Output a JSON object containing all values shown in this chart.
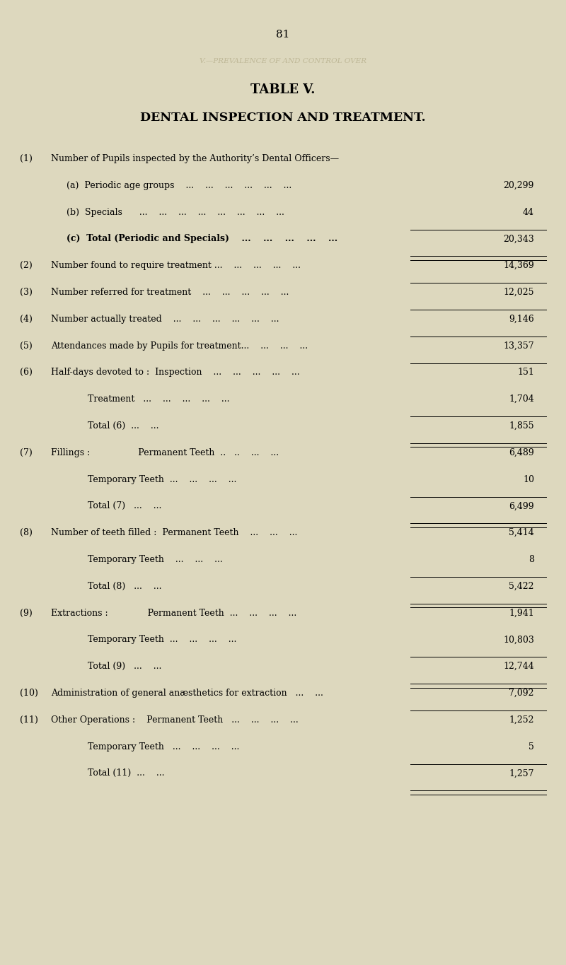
{
  "page_number": "81",
  "watermark_text": "V.—PREVALENCE OF AND CONTROL OVER",
  "table_title": "TABLE V.",
  "table_subtitle": "DENTAL INSPECTION AND TREATMENT.",
  "bg_color": "#ddd8be",
  "rows": [
    {
      "num": "(1)",
      "indent": 0,
      "label": "Number of Pupils inspected by the Authority’s Dental Officers—",
      "value": null,
      "separator_after": false,
      "bold": false,
      "double_line": false
    },
    {
      "num": "",
      "indent": 1,
      "label": "(a)  Periodic age groups    ...    ...    ...    ...    ...    ...",
      "value": "20,299",
      "separator_after": false,
      "bold": false,
      "double_line": false
    },
    {
      "num": "",
      "indent": 1,
      "label": "(b)  Specials      ...    ...    ...    ...    ...    ...    ...    ...",
      "value": "44",
      "separator_after": true,
      "bold": false,
      "double_line": false
    },
    {
      "num": "",
      "indent": 1,
      "label": "(c)  Total (Periodic and Specials)    ...    ...    ...    ...    ...",
      "value": "20,343",
      "separator_after": true,
      "bold": true,
      "double_line": true
    },
    {
      "num": "(2)",
      "indent": 0,
      "label": "Number found to require treatment ...    ...    ...    ...    ...",
      "value": "14,369",
      "separator_after": true,
      "bold": false,
      "double_line": false
    },
    {
      "num": "(3)",
      "indent": 0,
      "label": "Number referred for treatment    ...    ...    ...    ...    ...",
      "value": "12,025",
      "separator_after": true,
      "bold": false,
      "double_line": false
    },
    {
      "num": "(4)",
      "indent": 0,
      "label": "Number actually treated    ...    ...    ...    ...    ...    ...",
      "value": "9,146",
      "separator_after": true,
      "bold": false,
      "double_line": false
    },
    {
      "num": "(5)",
      "indent": 0,
      "label": "Attendances made by Pupils for treatment...    ...    ...    ...",
      "value": "13,357",
      "separator_after": true,
      "bold": false,
      "double_line": false
    },
    {
      "num": "(6)",
      "indent": 0,
      "label": "Half-days devoted to :  Inspection    ...    ...    ...    ...    ...",
      "value": "151",
      "separator_after": false,
      "bold": false,
      "double_line": false
    },
    {
      "num": "",
      "indent": 2,
      "label": "Treatment   ...    ...    ...    ...    ...",
      "value": "1,704",
      "separator_after": true,
      "bold": false,
      "double_line": false
    },
    {
      "num": "",
      "indent": 2,
      "label": "Total (6)  ...    ...",
      "value": "1,855",
      "separator_after": true,
      "bold": false,
      "double_line": true
    },
    {
      "num": "(7)",
      "indent": 0,
      "label": "Fillings :                 Permanent Teeth  ..   ..    ...    ...",
      "value": "6,489",
      "separator_after": false,
      "bold": false,
      "double_line": false
    },
    {
      "num": "",
      "indent": 2,
      "label": "Temporary Teeth  ...    ...    ...    ...",
      "value": "10",
      "separator_after": true,
      "bold": false,
      "double_line": false
    },
    {
      "num": "",
      "indent": 2,
      "label": "Total (7)   ...    ...",
      "value": "6,499",
      "separator_after": true,
      "bold": false,
      "double_line": true
    },
    {
      "num": "(8)",
      "indent": 0,
      "label": "Number of teeth filled :  Permanent Teeth    ...    ...    ...",
      "value": "5,414",
      "separator_after": false,
      "bold": false,
      "double_line": false
    },
    {
      "num": "",
      "indent": 2,
      "label": "Temporary Teeth    ...    ...    ...",
      "value": "8",
      "separator_after": true,
      "bold": false,
      "double_line": false
    },
    {
      "num": "",
      "indent": 2,
      "label": "Total (8)   ...    ...",
      "value": "5,422",
      "separator_after": true,
      "bold": false,
      "double_line": true
    },
    {
      "num": "(9)",
      "indent": 0,
      "label": "Extractions :              Permanent Teeth  ...    ...    ...    ...",
      "value": "1,941",
      "separator_after": false,
      "bold": false,
      "double_line": false
    },
    {
      "num": "",
      "indent": 2,
      "label": "Temporary Teeth  ...    ...    ...    ...",
      "value": "10,803",
      "separator_after": true,
      "bold": false,
      "double_line": false
    },
    {
      "num": "",
      "indent": 2,
      "label": "Total (9)   ...    ...",
      "value": "12,744",
      "separator_after": true,
      "bold": false,
      "double_line": true
    },
    {
      "num": "(10)",
      "indent": 0,
      "label": "Administration of general anæsthetics for extraction   ...    ...",
      "value": "7,092",
      "separator_after": true,
      "bold": false,
      "double_line": false
    },
    {
      "num": "(11)",
      "indent": 0,
      "label": "Other Operations :    Permanent Teeth   ...    ...    ...    ...",
      "value": "1,252",
      "separator_after": false,
      "bold": false,
      "double_line": false
    },
    {
      "num": "",
      "indent": 2,
      "label": "Temporary Teeth   ...    ...    ...    ...",
      "value": "5",
      "separator_after": true,
      "bold": false,
      "double_line": false
    },
    {
      "num": "",
      "indent": 2,
      "label": "Total (11)  ...    ...",
      "value": "1,257",
      "separator_after": true,
      "bold": false,
      "double_line": true
    }
  ]
}
